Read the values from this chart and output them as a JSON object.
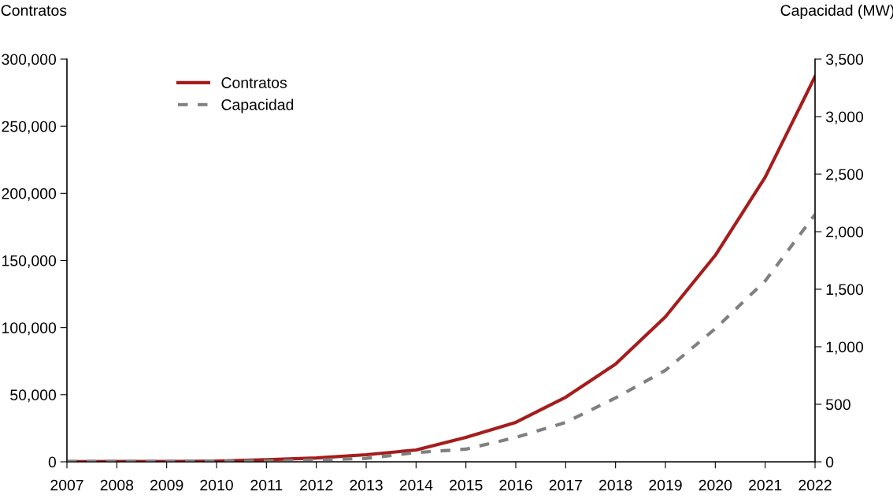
{
  "chart_data": {
    "type": "line",
    "ylabel": "Contratos",
    "y2label": "Capacidad (MW)",
    "categories": [
      "2007",
      "2008",
      "2009",
      "2010",
      "2011",
      "2012",
      "2013",
      "2014",
      "2015",
      "2016",
      "2017",
      "2018",
      "2019",
      "2020",
      "2021",
      "2022"
    ],
    "series": [
      {
        "name": "Contratos",
        "color": "#a61c1c",
        "line_style": "solid",
        "values": [
          100,
          200,
          300,
          500,
          1500,
          2900,
          5300,
          8800,
          18200,
          29400,
          48100,
          72800,
          108000,
          153800,
          212000,
          287000
        ]
      },
      {
        "name": "Capacidad",
        "color": "#808080",
        "line_style": "dashed",
        "axis": "y2",
        "values": [
          2,
          2,
          3,
          5,
          8,
          15,
          30,
          80,
          110,
          212,
          342,
          555,
          795,
          1157,
          1572,
          2150
        ]
      }
    ],
    "ylim": [
      0,
      300000
    ],
    "yticks": [
      {
        "value": 0,
        "label": "0"
      },
      {
        "value": 50000,
        "label": "50,000"
      },
      {
        "value": 100000,
        "label": "100,000"
      },
      {
        "value": 150000,
        "label": "150,000"
      },
      {
        "value": 200000,
        "label": "200,000"
      },
      {
        "value": 250000,
        "label": "250,000"
      },
      {
        "value": 300000,
        "label": "300,000"
      }
    ],
    "y2lim": [
      0,
      3500
    ],
    "y2ticks": [
      {
        "value": 0,
        "label": "0"
      },
      {
        "value": 500,
        "label": "500"
      },
      {
        "value": 1000,
        "label": "1,000"
      },
      {
        "value": 1500,
        "label": "1,500"
      },
      {
        "value": 2000,
        "label": "2,000"
      },
      {
        "value": 2500,
        "label": "2,500"
      },
      {
        "value": 3000,
        "label": "3,000"
      },
      {
        "value": 3500,
        "label": "3,500"
      }
    ],
    "grid": false,
    "legend": "top left",
    "marker": "none"
  }
}
